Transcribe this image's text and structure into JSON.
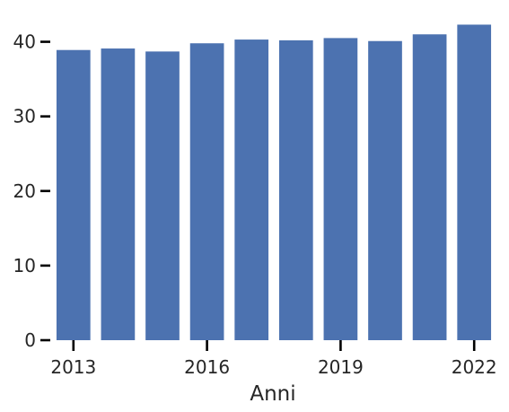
{
  "chart_data": {
    "type": "bar",
    "categories": [
      "2013",
      "2014",
      "2015",
      "2016",
      "2017",
      "2018",
      "2019",
      "2020",
      "2021",
      "2022"
    ],
    "values": [
      38.9,
      39.1,
      38.7,
      39.8,
      40.3,
      40.2,
      40.5,
      40.1,
      41.0,
      42.3
    ],
    "x_tick_labels": [
      "2013",
      "2016",
      "2019",
      "2022"
    ],
    "y_ticks": [
      0,
      10,
      20,
      30,
      40
    ],
    "xlabel": "Anni",
    "ylabel": "",
    "ylim": [
      0,
      44.4
    ],
    "bar_color": "#4c72b0",
    "grid": false
  }
}
